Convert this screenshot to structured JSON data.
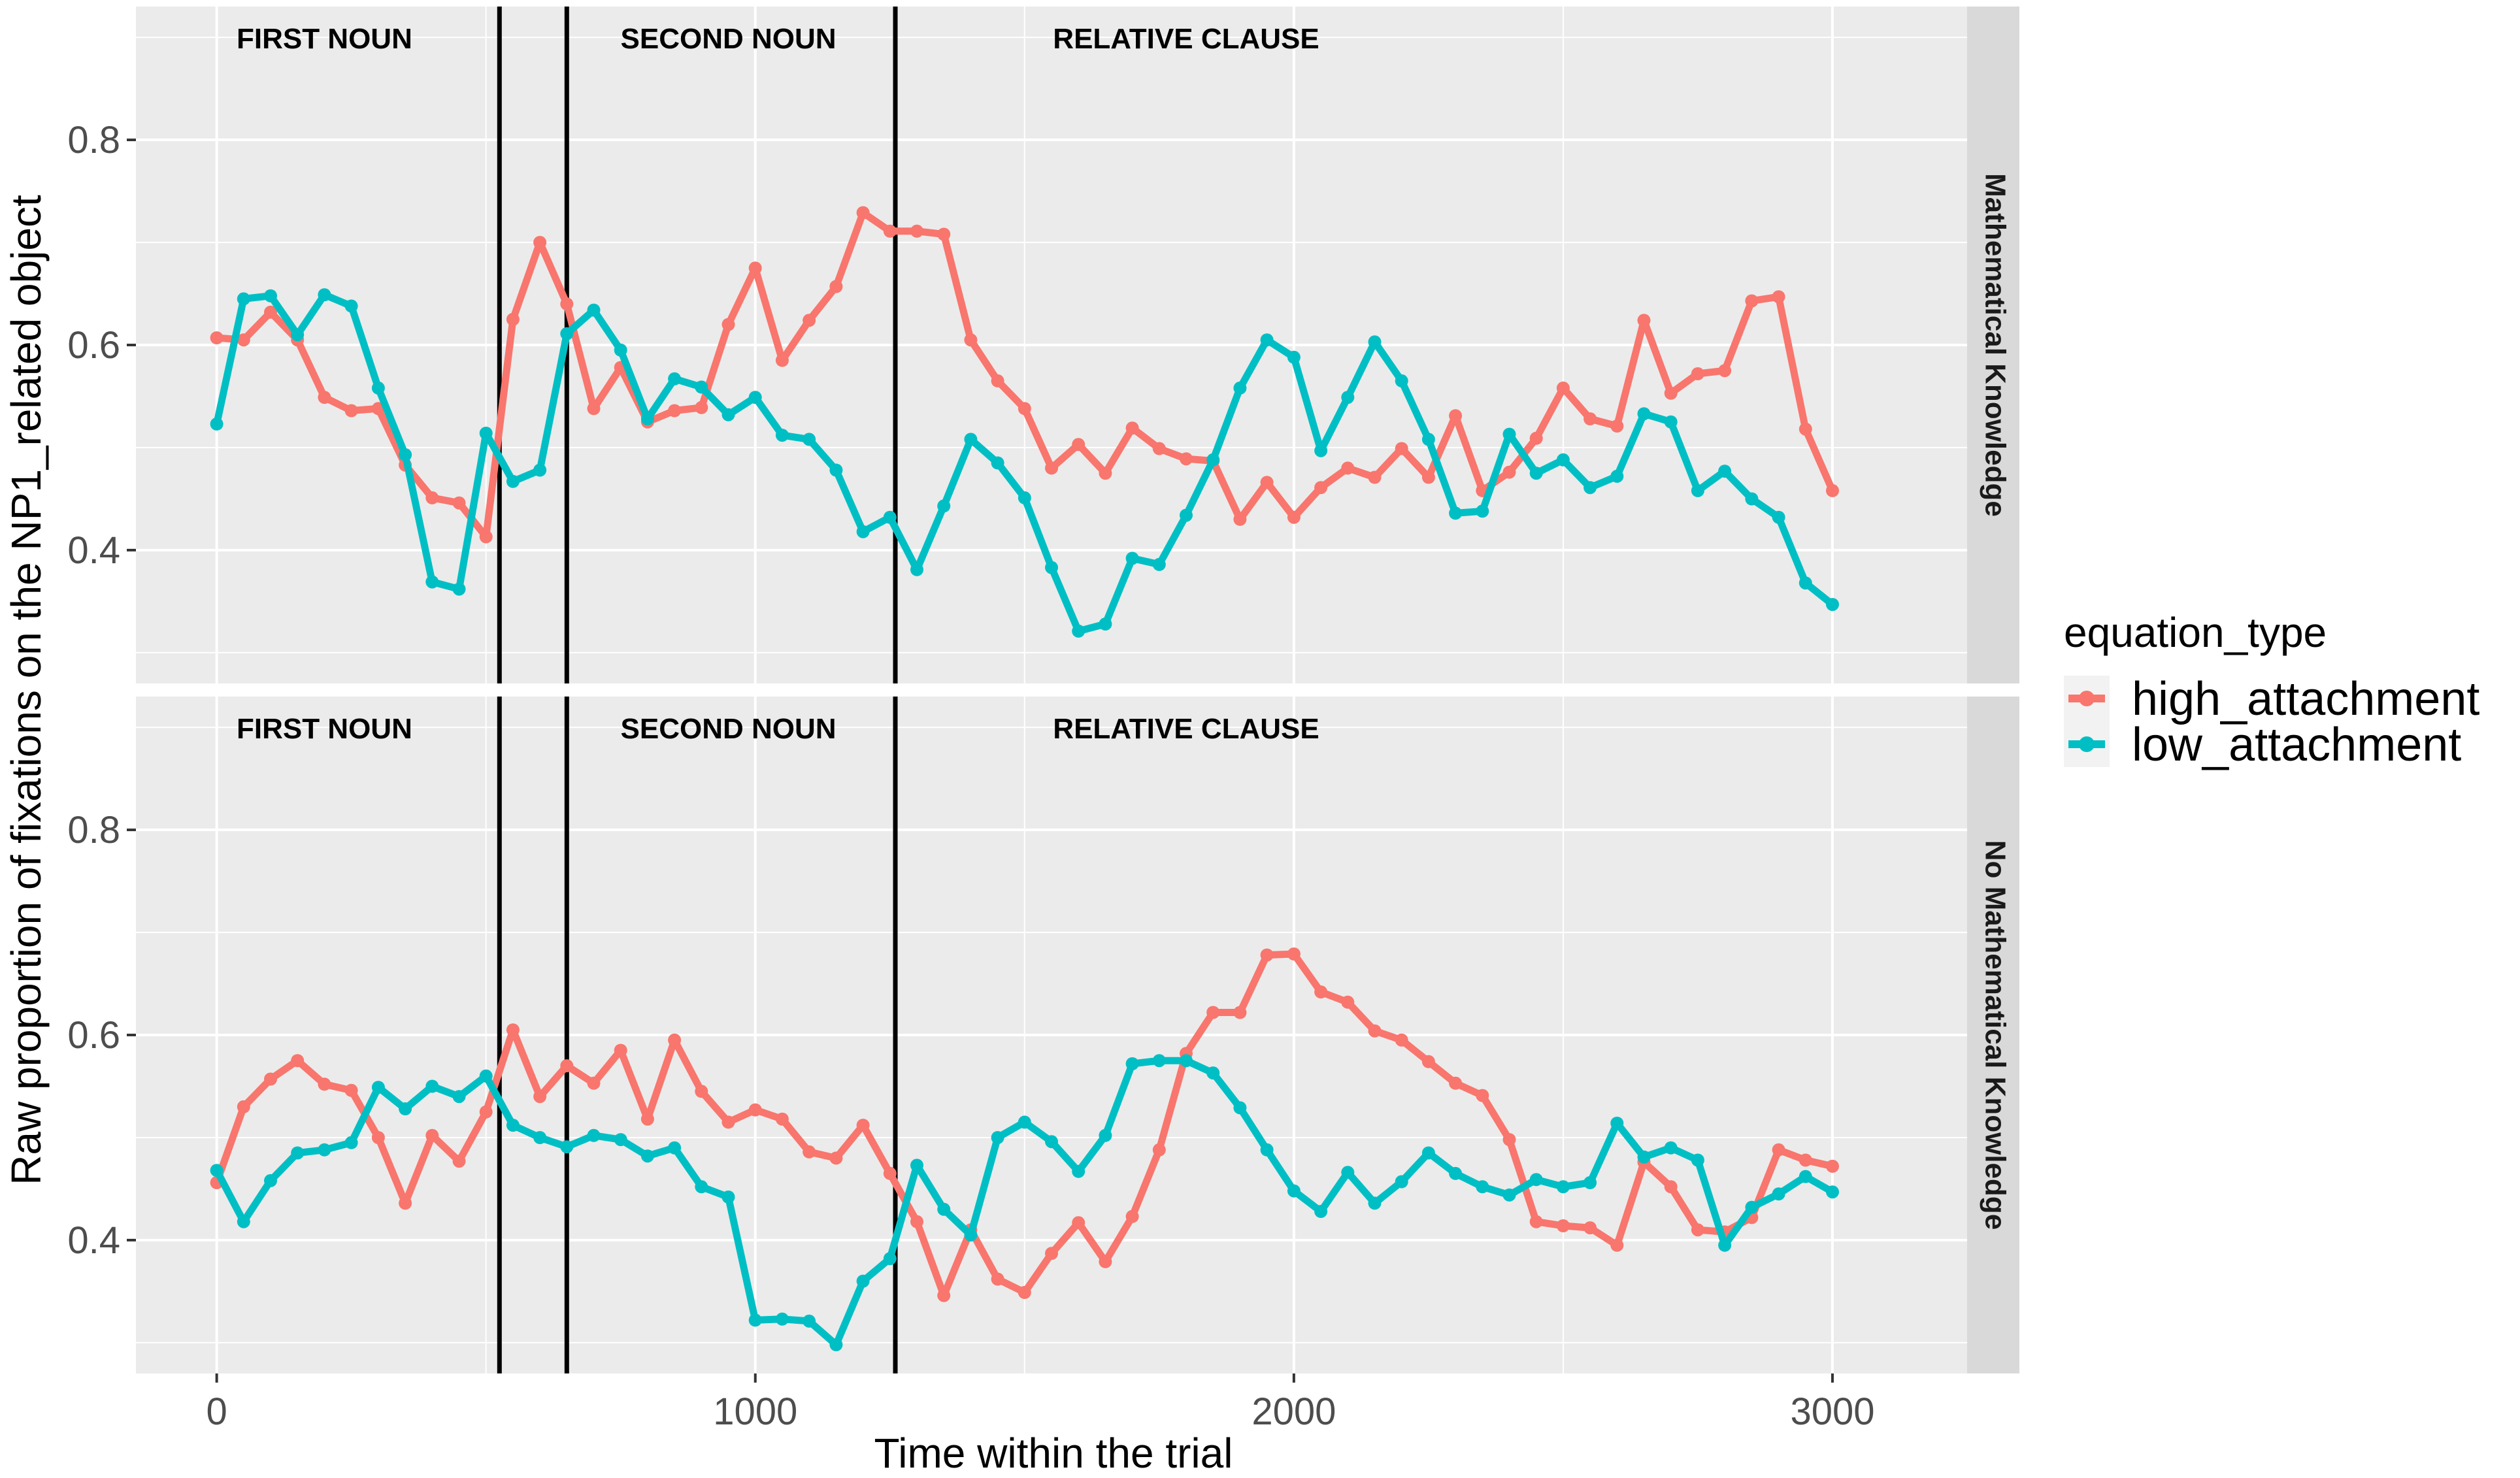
{
  "chart_data": {
    "type": "line",
    "title": "",
    "xlabel": "Time within the trial",
    "ylabel": "Raw proportion of fixations on the NP1_related object",
    "xlim": [
      -150,
      3250
    ],
    "ylim": [
      0.27,
      0.93
    ],
    "x_ticks": [
      0,
      1000,
      2000,
      3000
    ],
    "x_tick_labels": [
      "0",
      "1000",
      "2000",
      "3000"
    ],
    "y_ticks": [
      0.4,
      0.6,
      0.8
    ],
    "y_tick_labels": [
      "0.4",
      "0.6",
      "0.8"
    ],
    "grid": true,
    "legend": {
      "title": "equation_type",
      "position": "right",
      "entries": [
        "high_attachment",
        "low_attachment"
      ]
    },
    "colors": {
      "high_attachment": "#F8766D",
      "low_attachment": "#00BFC4"
    },
    "x": [
      0,
      50,
      100,
      150,
      200,
      250,
      300,
      350,
      400,
      450,
      500,
      550,
      600,
      650,
      700,
      750,
      800,
      850,
      900,
      950,
      1000,
      1050,
      1100,
      1150,
      1200,
      1250,
      1300,
      1350,
      1400,
      1450,
      1500,
      1550,
      1600,
      1650,
      1700,
      1750,
      1800,
      1850,
      1900,
      1950,
      2000,
      2050,
      2100,
      2150,
      2200,
      2250,
      2300,
      2350,
      2400,
      2450,
      2500,
      2550,
      2600,
      2650,
      2700,
      2750,
      2800,
      2850,
      2900,
      2950,
      3000
    ],
    "vlines": [
      525,
      650,
      1260
    ],
    "region_labels": [
      {
        "label": "FIRST NOUN",
        "x_center": 200
      },
      {
        "label": "SECOND NOUN",
        "x_center": 950
      },
      {
        "label": "RELATIVE CLAUSE",
        "x_center": 1800
      }
    ],
    "panels": [
      {
        "strip": "Mathematical Knowledge",
        "series": [
          {
            "name": "high_attachment",
            "values": [
              0.607,
              0.605,
              0.632,
              0.605,
              0.549,
              0.536,
              0.538,
              0.483,
              0.451,
              0.446,
              0.413,
              0.625,
              0.7,
              0.64,
              0.538,
              0.578,
              0.525,
              0.536,
              0.539,
              0.62,
              0.675,
              0.585,
              0.624,
              0.657,
              0.729,
              0.711,
              0.711,
              0.708,
              0.605,
              0.565,
              0.538,
              0.48,
              0.503,
              0.475,
              0.519,
              0.499,
              0.489,
              0.487,
              0.43,
              0.466,
              0.432,
              0.461,
              0.48,
              0.471,
              0.499,
              0.471,
              0.531,
              0.458,
              0.476,
              0.509,
              0.558,
              0.528,
              0.521,
              0.624,
              0.553,
              0.572,
              0.575,
              0.643,
              0.647,
              0.518,
              0.458
            ]
          },
          {
            "name": "low_attachment",
            "values": [
              0.523,
              0.645,
              0.648,
              0.61,
              0.649,
              0.638,
              0.558,
              0.493,
              0.369,
              0.362,
              0.514,
              0.467,
              0.478,
              0.611,
              0.634,
              0.595,
              0.528,
              0.567,
              0.559,
              0.532,
              0.549,
              0.512,
              0.508,
              0.478,
              0.418,
              0.432,
              0.381,
              0.443,
              0.508,
              0.485,
              0.451,
              0.383,
              0.321,
              0.328,
              0.392,
              0.386,
              0.434,
              0.488,
              0.558,
              0.605,
              0.588,
              0.497,
              0.549,
              0.603,
              0.565,
              0.508,
              0.436,
              0.438,
              0.513,
              0.475,
              0.488,
              0.461,
              0.472,
              0.533,
              0.525,
              0.458,
              0.477,
              0.45,
              0.432,
              0.368,
              0.347
            ]
          }
        ]
      },
      {
        "strip": "No Mathematical Knowledge",
        "series": [
          {
            "name": "high_attachment",
            "values": [
              0.456,
              0.53,
              0.557,
              0.575,
              0.552,
              0.546,
              0.5,
              0.436,
              0.502,
              0.477,
              0.525,
              0.605,
              0.54,
              0.57,
              0.553,
              0.585,
              0.518,
              0.595,
              0.545,
              0.515,
              0.527,
              0.518,
              0.486,
              0.48,
              0.512,
              0.465,
              0.418,
              0.346,
              0.41,
              0.362,
              0.349,
              0.387,
              0.417,
              0.379,
              0.423,
              0.488,
              0.582,
              0.622,
              0.622,
              0.678,
              0.679,
              0.642,
              0.632,
              0.604,
              0.595,
              0.574,
              0.553,
              0.541,
              0.498,
              0.418,
              0.414,
              0.412,
              0.395,
              0.476,
              0.452,
              0.41,
              0.408,
              0.422,
              0.488,
              0.478,
              0.472
            ]
          },
          {
            "name": "low_attachment",
            "values": [
              0.468,
              0.418,
              0.458,
              0.485,
              0.488,
              0.495,
              0.549,
              0.528,
              0.55,
              0.54,
              0.56,
              0.512,
              0.5,
              0.491,
              0.502,
              0.498,
              0.482,
              0.49,
              0.452,
              0.442,
              0.322,
              0.323,
              0.321,
              0.298,
              0.36,
              0.382,
              0.473,
              0.43,
              0.405,
              0.5,
              0.515,
              0.496,
              0.467,
              0.502,
              0.572,
              0.575,
              0.575,
              0.563,
              0.529,
              0.488,
              0.448,
              0.428,
              0.466,
              0.436,
              0.457,
              0.485,
              0.465,
              0.452,
              0.444,
              0.459,
              0.452,
              0.456,
              0.514,
              0.481,
              0.49,
              0.478,
              0.395,
              0.432,
              0.445,
              0.462,
              0.447
            ]
          }
        ]
      }
    ]
  }
}
